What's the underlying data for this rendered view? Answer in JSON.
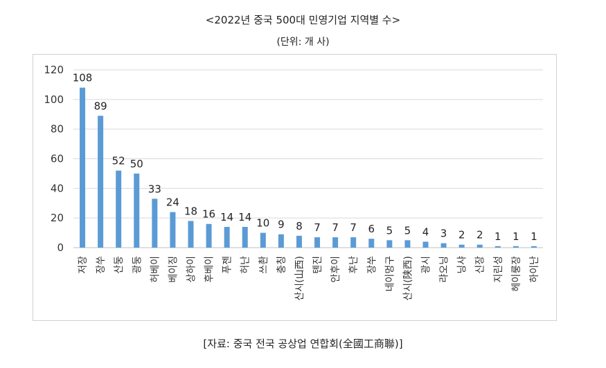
{
  "title": "<2022년 중국 500대 민영기업 지역별 수>",
  "subtitle": "(단위: 개 사)",
  "source": "[자료: 중국 전국 공상업 연합회(全國工商聯)]",
  "chart_data": {
    "type": "bar",
    "categories": [
      "저장",
      "장쑤",
      "산둥",
      "광둥",
      "허베이",
      "베이징",
      "상하이",
      "후베이",
      "푸젠",
      "허난",
      "쓰촨",
      "충칭",
      "산시(山西)",
      "톈진",
      "안후이",
      "후난",
      "장쑤",
      "네이멍구",
      "산시(陕西)",
      "광시",
      "랴오닝",
      "닝샤",
      "신장",
      "지린성",
      "헤이룽장",
      "하이난"
    ],
    "values": [
      108,
      89,
      52,
      50,
      33,
      24,
      18,
      16,
      14,
      14,
      10,
      9,
      8,
      7,
      7,
      7,
      6,
      5,
      5,
      4,
      3,
      2,
      2,
      1,
      1,
      1
    ],
    "ylim": [
      0,
      120
    ],
    "yticks": [
      0,
      20,
      40,
      60,
      80,
      100,
      120
    ],
    "bar_color": "#5b9bd5",
    "grid": true
  }
}
